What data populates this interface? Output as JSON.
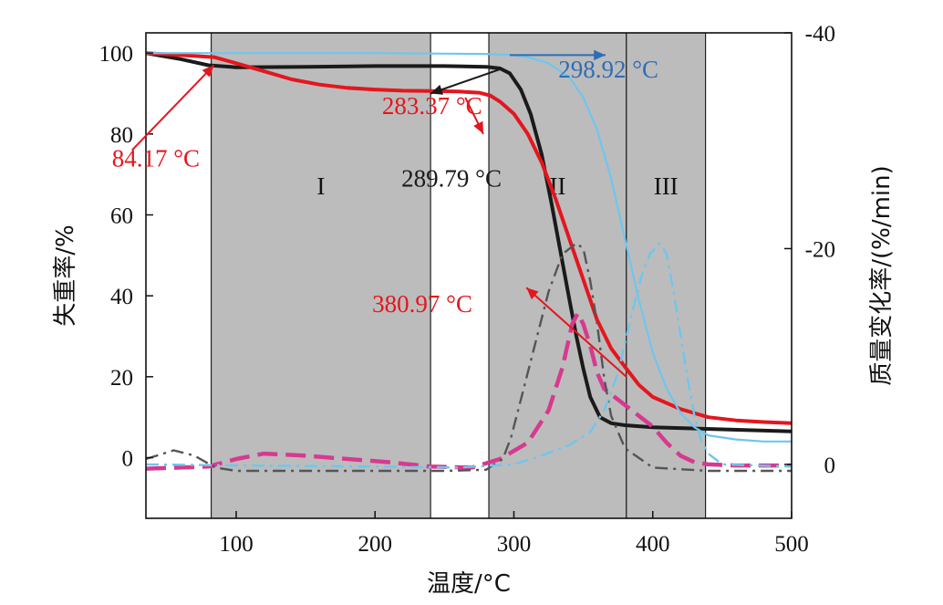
{
  "chart_data": {
    "type": "line",
    "xlabel": "温度/°C",
    "ylabel_left": "失重率/%",
    "ylabel_right": "质量变化率/(%/min)",
    "xlim": [
      35,
      500
    ],
    "ylim_left": [
      -15,
      105
    ],
    "ylim_right": [
      5,
      -40
    ],
    "x_ticks": [
      100,
      200,
      300,
      400,
      500
    ],
    "y_ticks_left": [
      0,
      20,
      40,
      60,
      80,
      100
    ],
    "y_ticks_right": [
      0,
      -20,
      -40
    ],
    "regions": [
      {
        "label": "I",
        "x": [
          82,
          240
        ]
      },
      {
        "label": "",
        "x": [
          282,
          282
        ]
      },
      {
        "label": "II",
        "x": [
          282,
          381
        ]
      },
      {
        "label": "III",
        "x": [
          381,
          438
        ]
      }
    ],
    "colors": {
      "black": "#1a1a1a",
      "red": "#e4161e",
      "light_blue": "#6ec6ee",
      "dark_blue": "#2e6db6",
      "magenta": "#d63a8f",
      "gray_dash": "#555555",
      "region": "#bcbcbc"
    },
    "series": [
      {
        "id": "tg_black",
        "axis": "left",
        "color": "#1a1a1a",
        "style": "solid",
        "width": 4,
        "x": [
          35,
          60,
          80,
          100,
          150,
          200,
          250,
          280,
          290,
          297,
          305,
          312,
          320,
          327,
          334,
          340,
          345,
          350,
          355,
          362,
          370,
          380,
          400,
          450,
          500
        ],
        "y": [
          100,
          98.5,
          97,
          96.5,
          96.6,
          96.8,
          96.8,
          96.6,
          96.2,
          95,
          91,
          85,
          75,
          63,
          50,
          39,
          30,
          22,
          15,
          10,
          8.5,
          8,
          7.5,
          7,
          6.5
        ]
      },
      {
        "id": "tg_red",
        "axis": "left",
        "color": "#e4161e",
        "style": "solid",
        "width": 4,
        "x": [
          35,
          60,
          84,
          100,
          120,
          140,
          160,
          180,
          200,
          220,
          240,
          260,
          275,
          283,
          290,
          300,
          310,
          320,
          330,
          340,
          350,
          360,
          370,
          381,
          390,
          400,
          420,
          440,
          460,
          480,
          500
        ],
        "y": [
          100,
          99.5,
          99,
          97.5,
          95.5,
          93.5,
          92.2,
          91.4,
          91,
          90.7,
          90.6,
          90.5,
          90.2,
          89.5,
          88,
          85,
          80,
          73,
          64,
          54,
          44,
          34,
          27,
          22,
          18,
          15,
          12,
          10,
          9.2,
          8.8,
          8.5
        ]
      },
      {
        "id": "tg_light_blue",
        "axis": "left",
        "color": "#6ec6ee",
        "style": "solid",
        "width": 2.2,
        "x": [
          35,
          100,
          200,
          280,
          299,
          310,
          325,
          340,
          350,
          360,
          370,
          380,
          390,
          400,
          410,
          420,
          430,
          440,
          460,
          480,
          500
        ],
        "y": [
          100,
          100,
          100,
          99.8,
          99.5,
          99,
          97.5,
          94,
          89,
          81,
          69,
          54,
          39,
          26,
          17,
          11,
          7.5,
          5.5,
          4.5,
          4,
          4
        ]
      },
      {
        "id": "dtg_magenta",
        "axis": "right",
        "color": "#d63a8f",
        "style": "dash",
        "width": 4.5,
        "x": [
          35,
          60,
          80,
          100,
          120,
          150,
          180,
          210,
          240,
          270,
          290,
          310,
          325,
          335,
          342,
          346,
          350,
          355,
          360,
          365,
          370,
          380,
          390,
          400,
          410,
          420,
          430,
          440,
          460,
          500
        ],
        "y": [
          0.4,
          0.3,
          0.2,
          -0.5,
          -1,
          -0.8,
          -0.5,
          -0.2,
          0.2,
          0.3,
          -0.5,
          -2,
          -5,
          -9,
          -13,
          -14,
          -13,
          -11,
          -8.5,
          -7,
          -6.5,
          -5.5,
          -4.5,
          -3.5,
          -2,
          -0.8,
          -0.2,
          0,
          0.1,
          0.1
        ]
      },
      {
        "id": "dtg_gray",
        "axis": "right",
        "color": "#555555",
        "style": "dashdot",
        "width": 2.4,
        "x": [
          35,
          55,
          70,
          85,
          100,
          150,
          200,
          250,
          280,
          292,
          298,
          305,
          315,
          325,
          335,
          345,
          350,
          355,
          360,
          365,
          370,
          380,
          400,
          440,
          500
        ],
        "y": [
          -0.5,
          -1.3,
          -0.8,
          0.3,
          0.6,
          0.6,
          0.6,
          0.6,
          0.5,
          -0.5,
          -2.5,
          -6,
          -11,
          -16,
          -19.5,
          -20.5,
          -20,
          -17,
          -13,
          -8,
          -4.5,
          -1.5,
          0.3,
          0.6,
          0.6
        ]
      },
      {
        "id": "dtg_light_blue",
        "axis": "right",
        "color": "#6ec6ee",
        "style": "dashdot",
        "width": 2.4,
        "x": [
          35,
          100,
          200,
          260,
          300,
          320,
          340,
          355,
          365,
          375,
          385,
          392,
          398,
          405,
          410,
          415,
          420,
          425,
          430,
          435,
          440,
          450,
          500
        ],
        "y": [
          0,
          0.1,
          0.2,
          0.3,
          0,
          -0.8,
          -1.8,
          -3,
          -5,
          -8.5,
          -14,
          -17.5,
          -19.5,
          -20.5,
          -19.5,
          -16,
          -12,
          -8,
          -4.5,
          -2.2,
          -1,
          0,
          0.2
        ]
      }
    ],
    "annotations": [
      {
        "text": "84.17 °C",
        "color": "#e4161e",
        "pos": [
          10.5,
          74
        ],
        "arrow_from": [
          25,
          76
        ],
        "arrow_to": [
          84,
          97
        ]
      },
      {
        "text": "289.79 °C",
        "color": "#1a1a1a",
        "pos": [
          219,
          69
        ],
        "arrow_from": [
          290,
          96
        ],
        "arrow_to": [
          240,
          90
        ]
      },
      {
        "text": "283.37 °C",
        "color": "#e4161e",
        "pos": [
          205,
          87
        ],
        "arrow_from": [
          265,
          89
        ],
        "arrow_to": [
          278,
          80
        ]
      },
      {
        "text": "298.92 °C",
        "color": "#2e6db6",
        "pos": [
          332,
          96
        ],
        "arrow_from": [
          297,
          99.5
        ],
        "arrow_to": [
          366,
          99.5
        ]
      },
      {
        "text": "380.97 °C",
        "color": "#e4161e",
        "pos": [
          198,
          38
        ],
        "arrow_from": [
          381,
          20
        ],
        "arrow_to": [
          309,
          42
        ]
      }
    ]
  }
}
